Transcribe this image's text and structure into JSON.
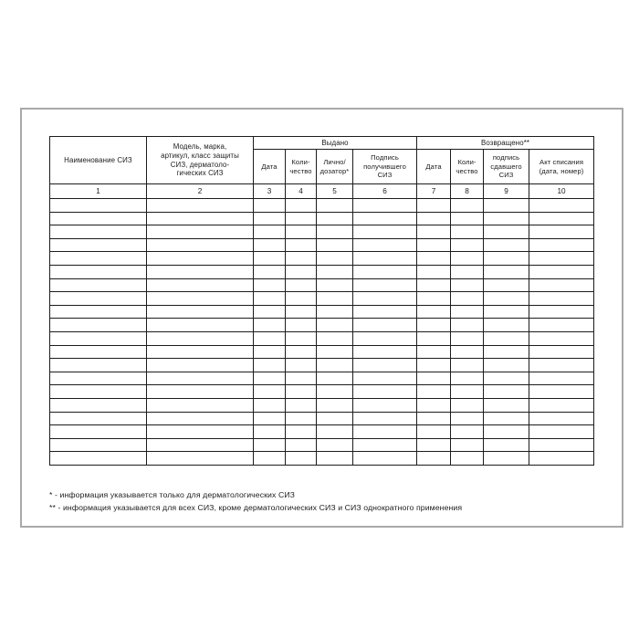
{
  "colors": {
    "table_line": "#1c1c1c",
    "page_border": "#a9a9a9",
    "background": "#ffffff"
  },
  "table": {
    "group_headers": [
      {
        "label": "Выдано",
        "span": 4
      },
      {
        "label": "Возвращено**",
        "span": 4
      }
    ],
    "columns": [
      {
        "label": "Наименование СИЗ",
        "number": "1"
      },
      {
        "label": "Модель, марка,\nартикул, класс защиты\nСИЗ, дерматоло-\nгических СИЗ",
        "number": "2"
      },
      {
        "label": "Дата",
        "number": "3"
      },
      {
        "label": "Коли-\nчество",
        "number": "4"
      },
      {
        "label": "Лично/\nдозатор*",
        "number": "5"
      },
      {
        "label": "Подпись\nполучившего\nСИЗ",
        "number": "6"
      },
      {
        "label": "Дата",
        "number": "7"
      },
      {
        "label": "Коли-\nчество",
        "number": "8"
      },
      {
        "label": "подпись\nсдавшего\nСИЗ",
        "number": "9"
      },
      {
        "label": "Акт списания\n(дата, номер)",
        "number": "10"
      }
    ],
    "empty_row_count": 20
  },
  "footnotes": [
    "* - информация указывается только для дерматологических СИЗ",
    "** - информация указывается для всех СИЗ, кроме дерматологических СИЗ и СИЗ однократного применения"
  ]
}
